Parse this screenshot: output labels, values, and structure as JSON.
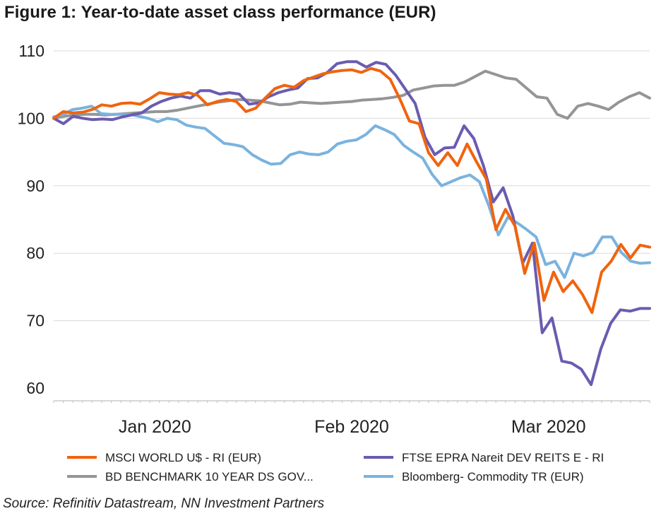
{
  "title": "Figure 1: Year-to-date asset class performance (EUR)",
  "source": "Source: Refinitiv Datastream, NN Investment Partners",
  "colors": {
    "msci": "#f0640f",
    "ftse": "#6b5bb0",
    "bd": "#959595",
    "bloomberg": "#7ab3de",
    "gridline": "#d9d9d9",
    "axis": "#bfbfbf"
  },
  "chart_data": {
    "type": "line",
    "title": "Figure 1: Year-to-date asset class performance (EUR)",
    "xlabel": "",
    "ylabel": "",
    "ylim": [
      60,
      110
    ],
    "yticks": [
      "60",
      "70",
      "80",
      "90",
      "100",
      "110"
    ],
    "xtick_labels": [
      "Jan 2020",
      "Feb 2020",
      "Mar 2020"
    ],
    "xlim_index": [
      0,
      53
    ],
    "xtick_positions_index": [
      9,
      26.5,
      44
    ],
    "grid": "horizontal",
    "legend": "bottom",
    "series": [
      {
        "name": "MSCI WORLD U$ - RI (EUR)",
        "color_key": "msci",
        "values": [
          100.0,
          101.0,
          100.8,
          100.9,
          101.3,
          102.0,
          101.8,
          102.2,
          102.3,
          102.1,
          102.9,
          103.8,
          103.6,
          103.5,
          103.8,
          103.4,
          102.0,
          102.5,
          102.8,
          102.5,
          101.0,
          101.5,
          103.0,
          104.4,
          104.9,
          104.6,
          105.6,
          106.1,
          106.6,
          106.9,
          107.1,
          107.2,
          106.8,
          107.4,
          107.0,
          105.8,
          102.9,
          99.6,
          99.2,
          94.9,
          93.0,
          94.9,
          93.0,
          96.2,
          93.5,
          91.0,
          83.5,
          86.5,
          84.0,
          77.0,
          81.5,
          73.0,
          77.2,
          74.3,
          75.9,
          73.9,
          71.2,
          77.2,
          78.8,
          81.3,
          79.3,
          81.2,
          80.9
        ]
      },
      {
        "name": "FTSE EPRA Nareit DEV REITS E - RI",
        "color_key": "ftse",
        "values": [
          100.0,
          99.2,
          100.3,
          100.0,
          99.8,
          99.9,
          99.8,
          100.2,
          100.5,
          100.8,
          101.8,
          102.5,
          103.0,
          103.3,
          103.0,
          104.1,
          104.1,
          103.6,
          103.8,
          103.6,
          102.1,
          102.3,
          103.2,
          103.8,
          104.2,
          104.5,
          105.9,
          106.0,
          106.8,
          108.1,
          108.4,
          108.4,
          107.6,
          108.3,
          108.0,
          106.4,
          104.3,
          102.2,
          97.2,
          94.6,
          95.6,
          95.7,
          98.9,
          97.0,
          92.9,
          87.6,
          89.7,
          85.5,
          78.5,
          81.5,
          68.2,
          70.4,
          64.0,
          63.7,
          62.8,
          60.5,
          65.8,
          69.6,
          71.6,
          71.4,
          71.8,
          71.8
        ]
      },
      {
        "name": "BD BENCHMARK 10 YEAR DS GOV...",
        "color_key": "bd",
        "values": [
          100.0,
          100.3,
          100.5,
          100.6,
          100.6,
          100.5,
          100.6,
          100.7,
          100.8,
          100.9,
          101.0,
          101.0,
          101.2,
          101.5,
          101.8,
          102.1,
          102.4,
          102.6,
          102.8,
          102.7,
          102.6,
          102.3,
          102.0,
          102.1,
          102.4,
          102.3,
          102.2,
          102.3,
          102.4,
          102.5,
          102.7,
          102.8,
          102.9,
          103.1,
          103.4,
          104.2,
          104.5,
          104.8,
          104.9,
          104.9,
          105.4,
          106.2,
          107.0,
          106.5,
          106.0,
          105.8,
          104.5,
          103.2,
          103.0,
          100.6,
          100.0,
          101.8,
          102.2,
          101.8,
          101.3,
          102.4,
          103.2,
          103.8,
          103.0
        ]
      },
      {
        "name": "Bloomberg- Commodity TR (EUR)",
        "color_key": "bloomberg",
        "values": [
          100.2,
          100.6,
          101.3,
          101.5,
          101.8,
          100.7,
          100.6,
          100.6,
          100.6,
          100.3,
          100.0,
          99.5,
          100.0,
          99.8,
          99.0,
          98.7,
          98.5,
          97.4,
          96.3,
          96.1,
          95.8,
          94.6,
          93.8,
          93.2,
          93.3,
          94.6,
          95.0,
          94.7,
          94.6,
          95.0,
          96.2,
          96.6,
          96.8,
          97.6,
          98.9,
          98.3,
          97.6,
          96.0,
          95.0,
          94.1,
          91.7,
          90.0,
          90.6,
          91.2,
          91.6,
          90.6,
          87.0,
          82.7,
          85.3,
          84.5,
          83.5,
          82.4,
          78.3,
          78.8,
          76.4,
          80.0,
          79.6,
          80.1,
          82.4,
          82.4,
          80.1,
          78.8,
          78.5,
          78.6
        ]
      }
    ]
  }
}
